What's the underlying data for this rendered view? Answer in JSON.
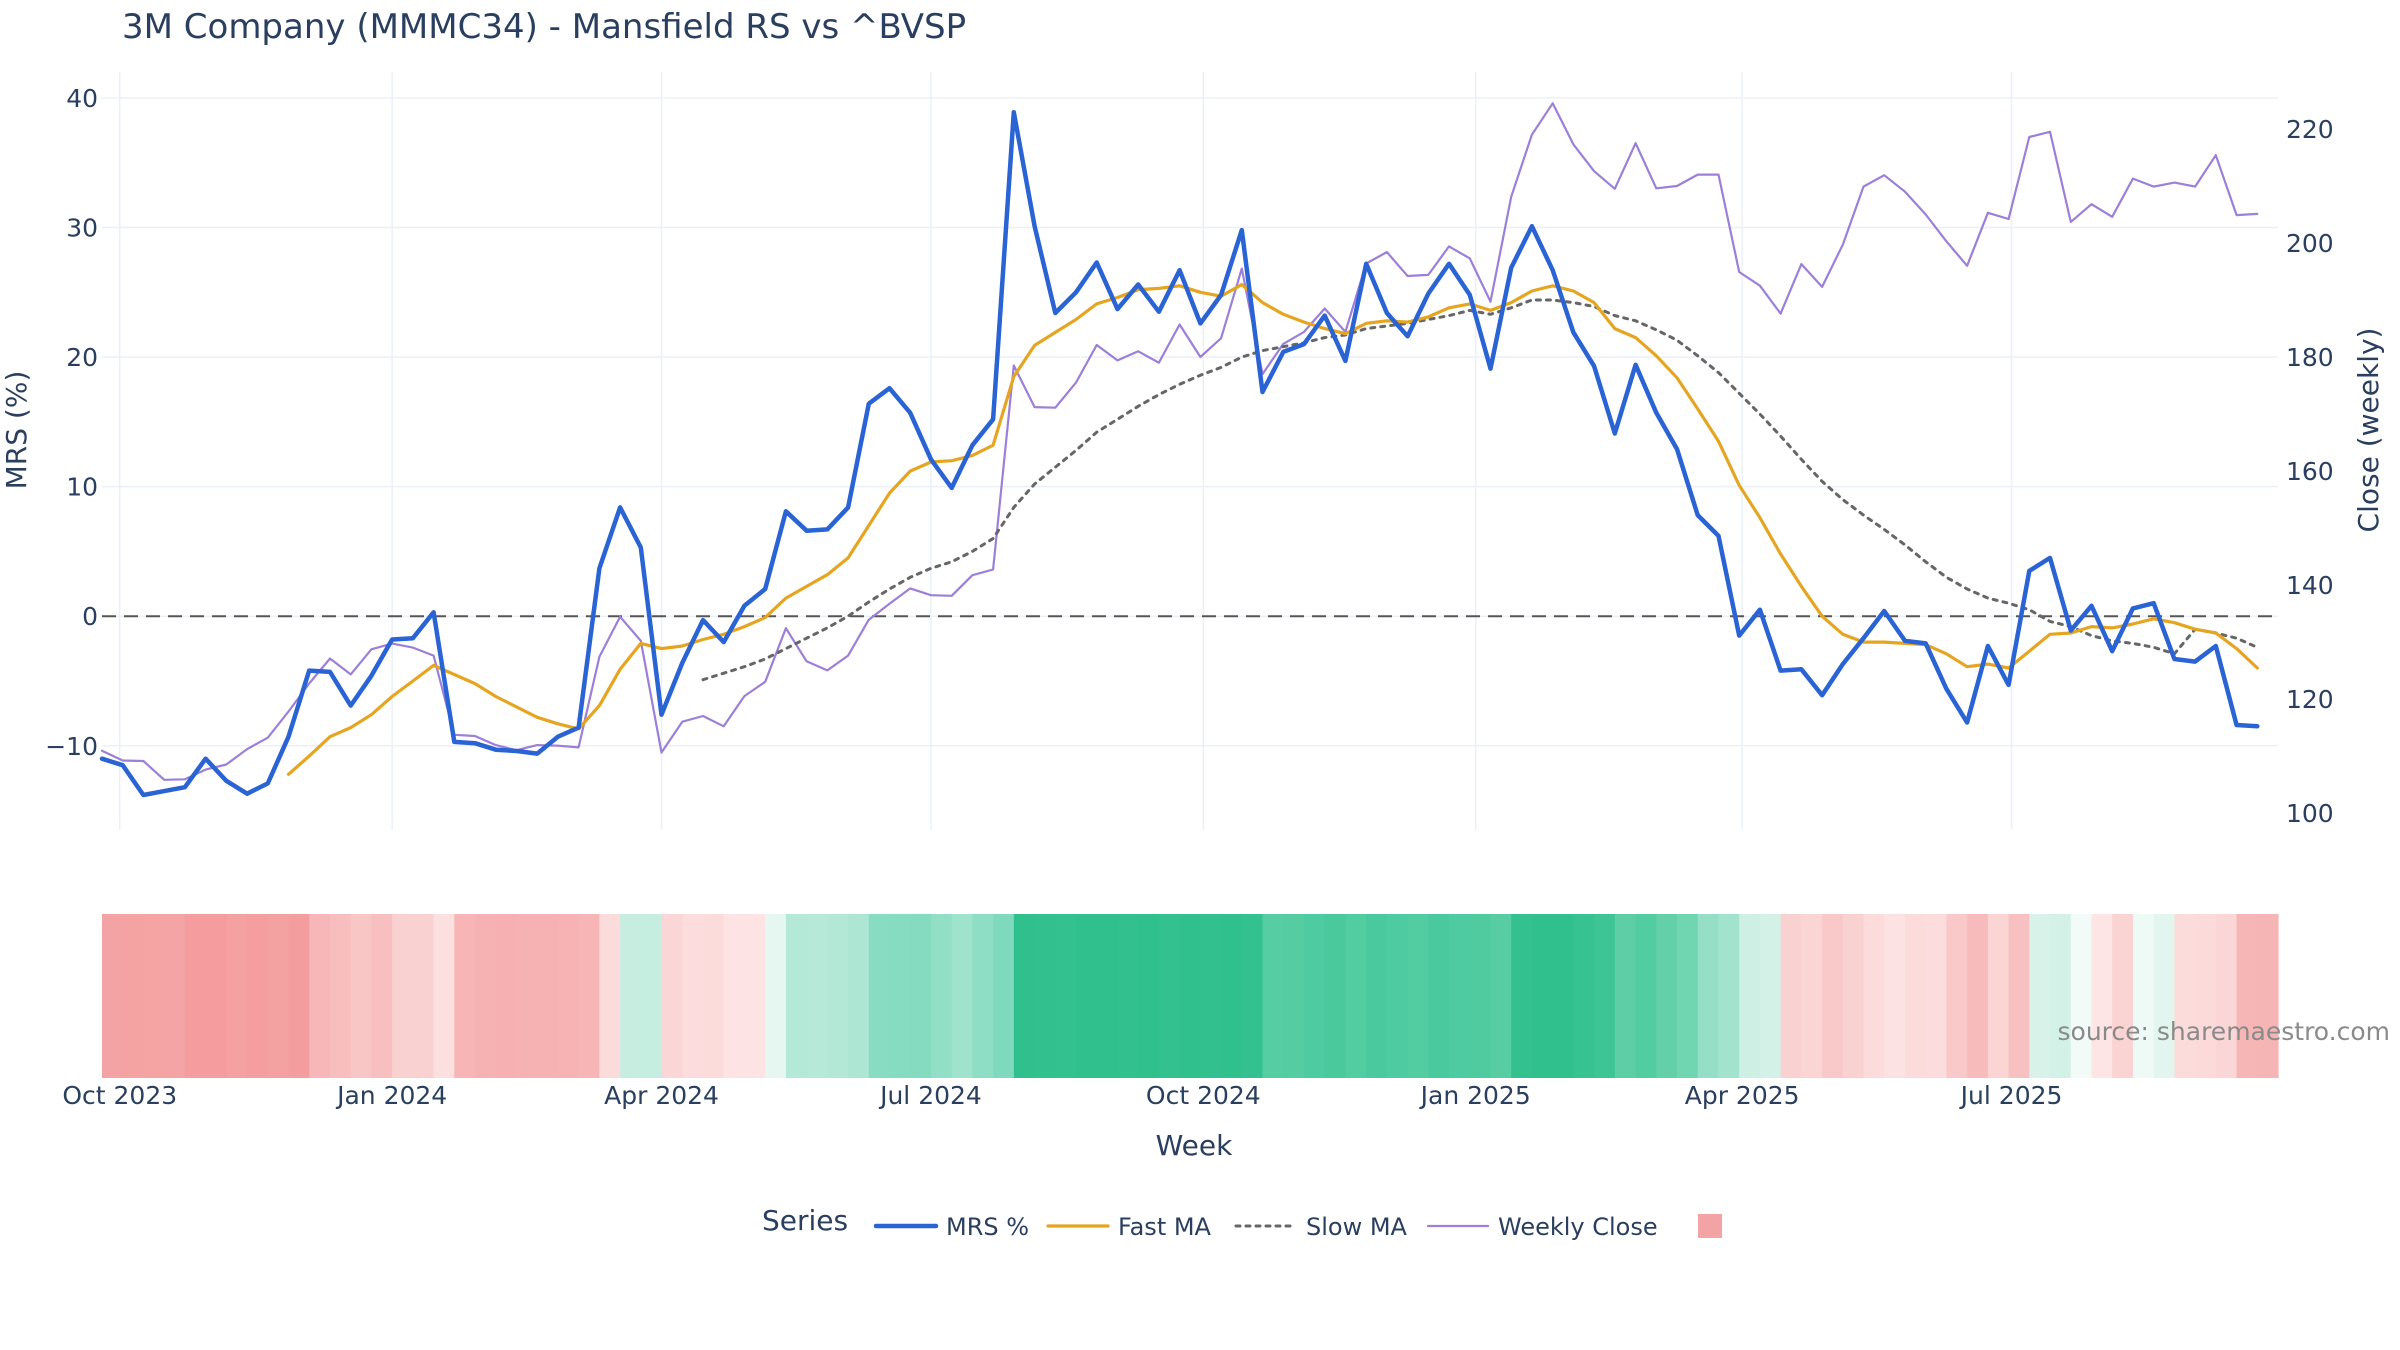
{
  "chart_data": {
    "type": "line",
    "title": "3M Company (MMMC34) - Mansfield RS vs ^BVSP",
    "xlabel": "Week",
    "ylabel_left": "MRS (%)",
    "ylabel_right": "Close (weekly)",
    "ylim_left": [
      -16.5,
      42
    ],
    "ylim_right": [
      97,
      230
    ],
    "yticks_left": [
      -10,
      0,
      10,
      20,
      30,
      40
    ],
    "yticks_right": [
      100,
      120,
      140,
      160,
      180,
      200,
      220
    ],
    "x_start": "2023-09-25",
    "x_end": "2025-09-29",
    "xticks": [
      {
        "date": "2023-10-01",
        "label": "Oct 2023"
      },
      {
        "date": "2024-01-01",
        "label": "Jan 2024"
      },
      {
        "date": "2024-04-01",
        "label": "Apr 2024"
      },
      {
        "date": "2024-07-01",
        "label": "Jul 2024"
      },
      {
        "date": "2024-10-01",
        "label": "Oct 2024"
      },
      {
        "date": "2025-01-01",
        "label": "Jan 2025"
      },
      {
        "date": "2025-04-01",
        "label": "Apr 2025"
      },
      {
        "date": "2025-07-01",
        "label": "Jul 2025"
      }
    ],
    "zero_line": 0,
    "weeks_start": "2023-09-25",
    "series": [
      {
        "name": "MRS %",
        "color": "#2a64d4",
        "axis": "left",
        "style": "solid",
        "values": [
          -11.0,
          -11.5,
          -13.8,
          -13.5,
          -13.2,
          -11.0,
          -12.7,
          -13.7,
          -12.9,
          -9.3,
          -4.2,
          -4.3,
          -6.9,
          -4.6,
          -1.8,
          -1.7,
          0.3,
          -9.7,
          -9.8,
          -10.3,
          -10.4,
          -10.6,
          -9.3,
          -8.6,
          3.7,
          8.4,
          5.3,
          -7.6,
          -3.6,
          -0.3,
          -2.0,
          0.8,
          2.1,
          8.1,
          6.6,
          6.7,
          8.4,
          16.4,
          17.6,
          15.7,
          12.1,
          9.9,
          13.2,
          15.2,
          38.9,
          30.1,
          23.4,
          25.0,
          27.3,
          23.7,
          25.6,
          23.5,
          26.7,
          22.6,
          24.8,
          29.8,
          17.3,
          20.4,
          21.0,
          23.2,
          19.7,
          27.2,
          23.4,
          21.6,
          24.9,
          27.2,
          24.8,
          19.1,
          26.9,
          30.1,
          26.7,
          21.9,
          19.3,
          14.1,
          19.4,
          15.7,
          12.9,
          7.8,
          6.2,
          -1.5,
          0.5,
          -4.2,
          -4.1,
          -6.1,
          -3.7,
          -1.7,
          0.4,
          -1.9,
          -2.1,
          -5.6,
          -8.2,
          -2.3,
          -5.3,
          3.5,
          4.5,
          -1.1,
          0.8,
          -2.7,
          0.6,
          1.0,
          -3.3,
          -3.5,
          -2.3,
          -8.4,
          -8.5
        ]
      },
      {
        "name": "Fast MA",
        "color": "#e5a521",
        "axis": "left",
        "style": "solid",
        "values": [
          null,
          null,
          null,
          null,
          null,
          null,
          null,
          null,
          null,
          -12.2,
          -10.8,
          -9.3,
          -8.6,
          -7.6,
          -6.2,
          -5.0,
          -3.8,
          -4.5,
          -5.2,
          -6.2,
          -7.0,
          -7.8,
          -8.3,
          -8.7,
          -6.9,
          -4.1,
          -2.1,
          -2.5,
          -2.3,
          -1.8,
          -1.4,
          -0.8,
          -0.1,
          1.4,
          2.3,
          3.2,
          4.5,
          7.0,
          9.5,
          11.2,
          11.9,
          12.0,
          12.4,
          13.2,
          18.5,
          20.9,
          21.9,
          22.9,
          24.1,
          24.6,
          25.2,
          25.3,
          25.5,
          25.0,
          24.7,
          25.6,
          24.2,
          23.3,
          22.7,
          22.2,
          21.8,
          22.6,
          22.8,
          22.7,
          23.1,
          23.8,
          24.1,
          23.6,
          24.2,
          25.1,
          25.5,
          25.1,
          24.2,
          22.2,
          21.5,
          20.1,
          18.4,
          16.0,
          13.5,
          10.1,
          7.6,
          4.8,
          2.3,
          0.0,
          -1.4,
          -2.0,
          -2.0,
          -2.1,
          -2.2,
          -2.9,
          -3.9,
          -3.7,
          -4.0,
          -2.7,
          -1.4,
          -1.3,
          -0.8,
          -0.9,
          -0.6,
          -0.2,
          -0.5,
          -1.0,
          -1.3,
          -2.5,
          -4.0
        ]
      },
      {
        "name": "Slow MA",
        "color": "#666666",
        "axis": "left",
        "style": "dotted",
        "values": [
          null,
          null,
          null,
          null,
          null,
          null,
          null,
          null,
          null,
          null,
          null,
          null,
          null,
          null,
          null,
          null,
          null,
          null,
          null,
          null,
          null,
          null,
          null,
          null,
          null,
          null,
          null,
          null,
          null,
          -4.9,
          -4.4,
          -3.9,
          -3.3,
          -2.5,
          -1.7,
          -0.9,
          0.0,
          1.1,
          2.1,
          3.0,
          3.7,
          4.2,
          5.0,
          6.0,
          8.4,
          10.2,
          11.5,
          12.8,
          14.2,
          15.2,
          16.2,
          17.1,
          17.9,
          18.6,
          19.2,
          20.0,
          20.5,
          20.8,
          21.1,
          21.5,
          21.7,
          22.2,
          22.4,
          22.6,
          22.9,
          23.2,
          23.6,
          23.3,
          23.8,
          24.4,
          24.4,
          24.2,
          23.9,
          23.2,
          22.8,
          22.1,
          21.3,
          20.1,
          18.8,
          17.2,
          15.6,
          13.9,
          12.1,
          10.4,
          9.0,
          7.8,
          6.7,
          5.5,
          4.2,
          3.0,
          2.1,
          1.4,
          1.0,
          0.5,
          -0.4,
          -0.8,
          -1.5,
          -1.9,
          -2.1,
          -2.4,
          -2.9,
          -1.0,
          -1.3,
          -1.7,
          -2.4
        ]
      },
      {
        "name": "Weekly Close",
        "color": "#9b7fd8",
        "axis": "right",
        "style": "solid",
        "values": [
          110.9,
          109.2,
          109.1,
          105.8,
          105.9,
          107.6,
          108.5,
          111.2,
          113.2,
          117.8,
          122.7,
          127.1,
          124.3,
          128.7,
          129.7,
          129.0,
          127.6,
          113.7,
          113.5,
          111.9,
          111.0,
          111.9,
          111.8,
          111.5,
          127.4,
          134.4,
          130.2,
          110.6,
          116.0,
          117.0,
          115.2,
          120.5,
          123.0,
          132.4,
          126.6,
          125.0,
          127.6,
          133.9,
          136.7,
          139.4,
          138.2,
          138.1,
          141.7,
          142.7,
          178.5,
          171.2,
          171.1,
          175.5,
          182.1,
          179.4,
          181.0,
          179.0,
          185.7,
          180.0,
          183.3,
          195.5,
          177.0,
          182.3,
          184.4,
          188.5,
          184.4,
          196.4,
          198.4,
          194.2,
          194.4,
          199.4,
          197.3,
          189.7,
          208.1,
          219.0,
          224.5,
          217.3,
          212.6,
          209.5,
          217.5,
          209.6,
          210.0,
          212.0,
          212.0,
          194.9,
          192.5,
          187.6,
          196.3,
          192.3,
          199.7,
          209.9,
          211.9,
          209.0,
          205.0,
          200.3,
          196.0,
          205.3,
          204.2,
          218.6,
          219.5,
          203.7,
          206.8,
          204.6,
          211.3,
          209.9,
          210.6,
          209.9,
          215.4,
          204.9,
          205.1
        ]
      }
    ],
    "heatmap_colors": [
      "#f4a3a4",
      "#f5a2a3",
      "#f5a3a3",
      "#f4a4a4",
      "#f59c9e",
      "#f59d9e",
      "#f5a0a1",
      "#f59e9f",
      "#f4a1a2",
      "#f49d9e",
      "#f7b6b7",
      "#f8bebe",
      "#f9c6c6",
      "#f8bfc0",
      "#fad1d1",
      "#fad1d1",
      "#fce0e0",
      "#f7b5b5",
      "#f6b2b3",
      "#f6b0b1",
      "#f6b1b2",
      "#f6b2b2",
      "#f7b3b4",
      "#f7b5b6",
      "#fcdbdb",
      "#c6ede0",
      "#c5ede0",
      "#fbd6d6",
      "#fcdcdc",
      "#fcdbdb",
      "#fde3e3",
      "#fde3e3",
      "#e6f7f1",
      "#b5e9d7",
      "#b6e9d8",
      "#b3e8d6",
      "#ade7d4",
      "#87dcc1",
      "#86dcc0",
      "#84dbbf",
      "#93dfc6",
      "#9fe3cc",
      "#8ddec4",
      "#7fd9bd",
      "#2fc08d",
      "#31c08e",
      "#33c190",
      "#2fc08d",
      "#2fc08d",
      "#31c08e",
      "#30c08d",
      "#33c190",
      "#2fc08d",
      "#31c08e",
      "#2fc08d",
      "#33c190",
      "#56cda3",
      "#55cca2",
      "#4ecba0",
      "#4ac99d",
      "#52cca1",
      "#4bc99e",
      "#4ecba0",
      "#52cca1",
      "#4bc99e",
      "#4ecba0",
      "#50cba0",
      "#58cda4",
      "#33c190",
      "#2fc08d",
      "#30c08d",
      "#36c291",
      "#3dc595",
      "#5dcea6",
      "#52cca1",
      "#63d0a9",
      "#70d5b1",
      "#94dfc6",
      "#a2e3cd",
      "#ceefe4",
      "#d4f1e7",
      "#fad1d1",
      "#fbd4d4",
      "#f9c9c9",
      "#fad1d1",
      "#fcdbdb",
      "#fce2e2",
      "#fcdbdb",
      "#fcdcdc",
      "#f9c8c8",
      "#f7bbbb",
      "#fbd4d4",
      "#f8c1c1",
      "#d8f2e9",
      "#d4f1e7",
      "#f2fbf8",
      "#fde5e5",
      "#fad3d3",
      "#eefaf6",
      "#e2f6ef",
      "#fcdbdb",
      "#fcdada",
      "#fbd6d6",
      "#f6b6b6",
      "#f6b5b5"
    ],
    "legend": {
      "title": "Series",
      "items": [
        "MRS %",
        "Fast MA",
        "Slow MA",
        "Weekly Close",
        ""
      ],
      "swatch_color": "#f4a3a4"
    },
    "annotation": "source: sharemaestro.com"
  }
}
